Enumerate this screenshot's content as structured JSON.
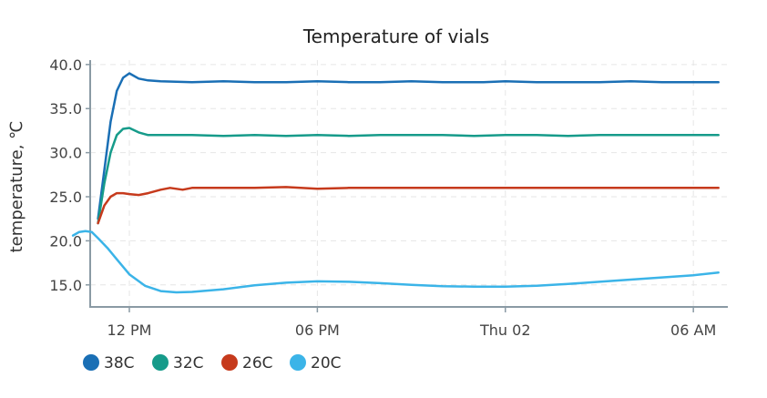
{
  "chart_data": {
    "type": "line",
    "title": "Temperature of vials",
    "ylabel": "temperature, ℃",
    "xlabel": "",
    "ylim": [
      12.5,
      40.5
    ],
    "xlim": [
      -1.25,
      19.1
    ],
    "yticks": [
      "15.0",
      "20.0",
      "25.0",
      "30.0",
      "35.0",
      "40.0"
    ],
    "ytick_values": [
      15,
      20,
      25,
      30,
      35,
      40
    ],
    "xticks": [
      "12 PM",
      "06 PM",
      "Thu 02",
      "06 AM"
    ],
    "xtick_values": [
      0,
      6,
      12,
      18
    ],
    "grid": true,
    "legend_position": "bottom-left",
    "series": [
      {
        "name": "38C",
        "color": "#1a6fb5",
        "x": [
          -1.0,
          -0.8,
          -0.6,
          -0.4,
          -0.2,
          0.0,
          0.3,
          0.6,
          1.0,
          2.0,
          3.0,
          4.0,
          5.0,
          6.0,
          7.0,
          8.0,
          9.0,
          10.0,
          11.0,
          11.3,
          12.0,
          13.0,
          14.0,
          15.0,
          16.0,
          17.0,
          18.0,
          18.8
        ],
        "y": [
          22.5,
          28.0,
          33.5,
          37.0,
          38.5,
          39.0,
          38.4,
          38.2,
          38.1,
          38.0,
          38.1,
          38.0,
          38.0,
          38.1,
          38.0,
          38.0,
          38.1,
          38.0,
          38.0,
          38.0,
          38.1,
          38.0,
          38.0,
          38.0,
          38.1,
          38.0,
          38.0,
          38.0
        ]
      },
      {
        "name": "32C",
        "color": "#169b8a",
        "x": [
          -1.0,
          -0.8,
          -0.6,
          -0.4,
          -0.2,
          0.0,
          0.3,
          0.6,
          1.0,
          2.0,
          3.0,
          4.0,
          5.0,
          6.0,
          7.0,
          8.0,
          9.0,
          10.0,
          11.0,
          12.0,
          13.0,
          14.0,
          15.0,
          16.0,
          17.0,
          18.0,
          18.8
        ],
        "y": [
          22.0,
          26.5,
          30.0,
          32.0,
          32.7,
          32.8,
          32.3,
          32.0,
          32.0,
          32.0,
          31.9,
          32.0,
          31.9,
          32.0,
          31.9,
          32.0,
          32.0,
          32.0,
          31.9,
          32.0,
          32.0,
          31.9,
          32.0,
          32.0,
          32.0,
          32.0,
          32.0
        ]
      },
      {
        "name": "26C",
        "color": "#c63a1c",
        "x": [
          -1.0,
          -0.8,
          -0.6,
          -0.4,
          -0.2,
          0.0,
          0.3,
          0.6,
          1.0,
          1.3,
          1.7,
          2.0,
          3.0,
          4.0,
          5.0,
          6.0,
          7.0,
          8.0,
          9.0,
          10.0,
          11.0,
          12.0,
          13.0,
          14.0,
          15.0,
          16.0,
          17.0,
          18.0,
          18.8
        ],
        "y": [
          22.0,
          24.0,
          25.0,
          25.4,
          25.4,
          25.3,
          25.2,
          25.4,
          25.8,
          26.0,
          25.8,
          26.0,
          26.0,
          26.0,
          26.1,
          25.9,
          26.0,
          26.0,
          26.0,
          26.0,
          26.0,
          26.0,
          26.0,
          26.0,
          26.0,
          26.0,
          26.0,
          26.0,
          26.0
        ]
      },
      {
        "name": "20C",
        "color": "#3bb4e8",
        "x": [
          -1.8,
          -1.6,
          -1.4,
          -1.2,
          -1.0,
          -0.7,
          -0.4,
          0.0,
          0.5,
          1.0,
          1.5,
          2.0,
          3.0,
          4.0,
          5.0,
          6.0,
          7.0,
          8.0,
          9.0,
          10.0,
          11.0,
          12.0,
          13.0,
          14.0,
          15.0,
          16.0,
          17.0,
          18.0,
          18.8
        ],
        "y": [
          20.6,
          21.0,
          21.1,
          21.0,
          20.3,
          19.2,
          17.9,
          16.2,
          14.9,
          14.3,
          14.15,
          14.2,
          14.5,
          14.95,
          15.25,
          15.4,
          15.35,
          15.2,
          15.0,
          14.85,
          14.8,
          14.8,
          14.9,
          15.1,
          15.35,
          15.6,
          15.85,
          16.1,
          16.4
        ]
      }
    ]
  }
}
